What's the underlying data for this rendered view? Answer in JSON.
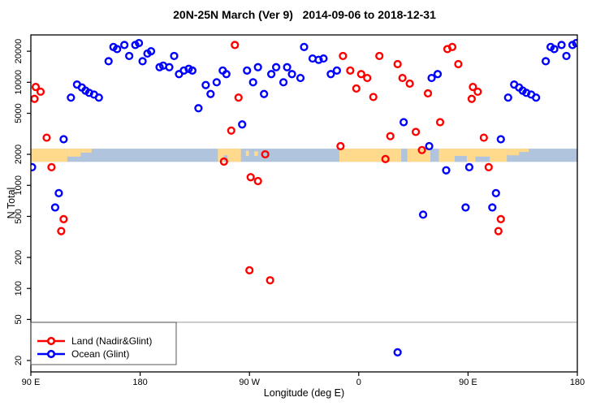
{
  "chart_data": {
    "type": "scatter",
    "title": "20N-25N March (Ver 9)   2014-09-06 to 2018-12-31",
    "xlabel": "Longitude (deg E)",
    "ylabel": "N Total",
    "x_range": [
      90,
      540
    ],
    "y_range": [
      15.5,
      28800
    ],
    "y_scale": "log",
    "x_ticks": [
      {
        "v": 90,
        "label": "90 E"
      },
      {
        "v": 180,
        "label": "180"
      },
      {
        "v": 270,
        "label": "90 W"
      },
      {
        "v": 360,
        "label": "0"
      },
      {
        "v": 450,
        "label": "90 E"
      },
      {
        "v": 540,
        "label": "180"
      }
    ],
    "y_ticks": [
      {
        "v": 20,
        "label": "20"
      },
      {
        "v": 50,
        "label": "50"
      },
      {
        "v": 100,
        "label": "100"
      },
      {
        "v": 200,
        "label": "200"
      },
      {
        "v": 500,
        "label": "500"
      },
      {
        "v": 1000,
        "label": "1000"
      },
      {
        "v": 2000,
        "label": "2000"
      },
      {
        "v": 5000,
        "label": "5000"
      },
      {
        "v": 10000,
        "label": "10000"
      },
      {
        "v": 20000,
        "label": "20000"
      }
    ],
    "reference_line": {
      "n": 47,
      "color": "#9a9a9a"
    },
    "map_band": {
      "top_n": 2270,
      "bottom_n": 1690,
      "ocean_color": "#B0C4DE",
      "land_color": "#FFD98C",
      "land_segments": [
        {
          "from": 90,
          "to": 120,
          "top": 0,
          "height": 1
        },
        {
          "from": 120,
          "to": 131,
          "top": 0,
          "height": 0.6
        },
        {
          "from": 131,
          "to": 140,
          "top": 0,
          "height": 0.3
        },
        {
          "from": 244,
          "to": 263,
          "top": 0,
          "height": 1
        },
        {
          "from": 267,
          "to": 269.5,
          "top": 0.15,
          "height": 0.4
        },
        {
          "from": 274,
          "to": 277,
          "top": 0.2,
          "height": 0.35
        },
        {
          "from": 344,
          "to": 395,
          "top": 0,
          "height": 1
        },
        {
          "from": 400,
          "to": 419,
          "top": 0,
          "height": 1
        },
        {
          "from": 426,
          "to": 482,
          "top": 0,
          "height": 1
        },
        {
          "from": 482,
          "to": 492,
          "top": 0,
          "height": 0.5
        },
        {
          "from": 492,
          "to": 500,
          "top": 0,
          "height": 0.25
        }
      ],
      "water_notches": [
        {
          "from": 249,
          "to": 252,
          "top": 0.5,
          "height": 0.5
        },
        {
          "from": 439,
          "to": 449,
          "top": 0.55,
          "height": 0.45
        },
        {
          "from": 456,
          "to": 468,
          "top": 0.6,
          "height": 0.4
        }
      ]
    },
    "legend": [
      {
        "label": "Land (Nadir&Glint)",
        "color": "#FF0000"
      },
      {
        "label": "Ocean (Glint)",
        "color": "#0000FF"
      }
    ],
    "series": [
      {
        "name": "Land (Nadir&Glint)",
        "color": "#FF0000",
        "points": [
          [
            94,
            9000
          ],
          [
            98,
            8100
          ],
          [
            93,
            6900
          ],
          [
            103,
            2900
          ],
          [
            107,
            1500
          ],
          [
            117,
            470
          ],
          [
            115,
            360
          ],
          [
            258,
            23000
          ],
          [
            261,
            7100
          ],
          [
            255,
            3400
          ],
          [
            249,
            1700
          ],
          [
            283,
            2000
          ],
          [
            271,
            1200
          ],
          [
            277,
            1100
          ],
          [
            270,
            150
          ],
          [
            287,
            120
          ],
          [
            347,
            18000
          ],
          [
            353,
            13000
          ],
          [
            362,
            12000
          ],
          [
            367,
            11000
          ],
          [
            358,
            8700
          ],
          [
            372,
            7200
          ],
          [
            377,
            18000
          ],
          [
            392,
            15000
          ],
          [
            396,
            11000
          ],
          [
            402,
            9700
          ],
          [
            417,
            7800
          ],
          [
            386,
            3000
          ],
          [
            407,
            3300
          ],
          [
            345,
            2400
          ],
          [
            382,
            1800
          ],
          [
            412,
            2200
          ],
          [
            427,
            4100
          ],
          [
            433,
            21000
          ],
          [
            437,
            22000
          ],
          [
            442,
            15000
          ],
          [
            454,
            9000
          ],
          [
            458,
            8100
          ],
          [
            453,
            6900
          ],
          [
            463,
            2900
          ],
          [
            467,
            1500
          ],
          [
            477,
            470
          ],
          [
            475,
            360
          ]
        ]
      },
      {
        "name": "Ocean (Glint)",
        "color": "#0000FF",
        "points": [
          [
            91,
            1500
          ],
          [
            113,
            840
          ],
          [
            110,
            610
          ],
          [
            117,
            2800
          ],
          [
            123,
            7100
          ],
          [
            128,
            9500
          ],
          [
            132,
            8900
          ],
          [
            135,
            8300
          ],
          [
            138,
            7900
          ],
          [
            142,
            7600
          ],
          [
            146,
            7100
          ],
          [
            154,
            16000
          ],
          [
            158,
            22000
          ],
          [
            161,
            21000
          ],
          [
            167,
            23000
          ],
          [
            171,
            18000
          ],
          [
            176,
            23000
          ],
          [
            179,
            24000
          ],
          [
            182,
            16000
          ],
          [
            186,
            19000
          ],
          [
            189,
            20000
          ],
          [
            196,
            14000
          ],
          [
            199,
            14500
          ],
          [
            204,
            14000
          ],
          [
            208,
            18000
          ],
          [
            212,
            12000
          ],
          [
            216,
            13000
          ],
          [
            220,
            13500
          ],
          [
            223,
            13000
          ],
          [
            228,
            5600
          ],
          [
            234,
            9400
          ],
          [
            238,
            7700
          ],
          [
            243,
            10000
          ],
          [
            248,
            13000
          ],
          [
            251,
            12000
          ],
          [
            264,
            3900
          ],
          [
            268,
            13000
          ],
          [
            273,
            10000
          ],
          [
            277,
            14000
          ],
          [
            282,
            7700
          ],
          [
            288,
            12000
          ],
          [
            292,
            14000
          ],
          [
            298,
            10000
          ],
          [
            301,
            14000
          ],
          [
            305,
            12000
          ],
          [
            312,
            11000
          ],
          [
            315,
            22000
          ],
          [
            322,
            17000
          ],
          [
            327,
            16500
          ],
          [
            331,
            17000
          ],
          [
            337,
            12000
          ],
          [
            342,
            13000
          ],
          [
            392,
            24
          ],
          [
            397,
            4100
          ],
          [
            413,
            520
          ],
          [
            418,
            2400
          ],
          [
            420,
            11000
          ],
          [
            425,
            12000
          ],
          [
            432,
            1400
          ],
          [
            448,
            610
          ],
          [
            451,
            1500
          ],
          [
            473,
            840
          ],
          [
            470,
            610
          ],
          [
            477,
            2800
          ],
          [
            483,
            7100
          ],
          [
            488,
            9500
          ],
          [
            492,
            8900
          ],
          [
            495,
            8300
          ],
          [
            498,
            7900
          ],
          [
            502,
            7600
          ],
          [
            506,
            7100
          ],
          [
            514,
            16000
          ],
          [
            518,
            22000
          ],
          [
            521,
            21000
          ],
          [
            527,
            23000
          ],
          [
            531,
            18000
          ],
          [
            536,
            23000
          ],
          [
            539,
            24000
          ]
        ]
      }
    ]
  }
}
